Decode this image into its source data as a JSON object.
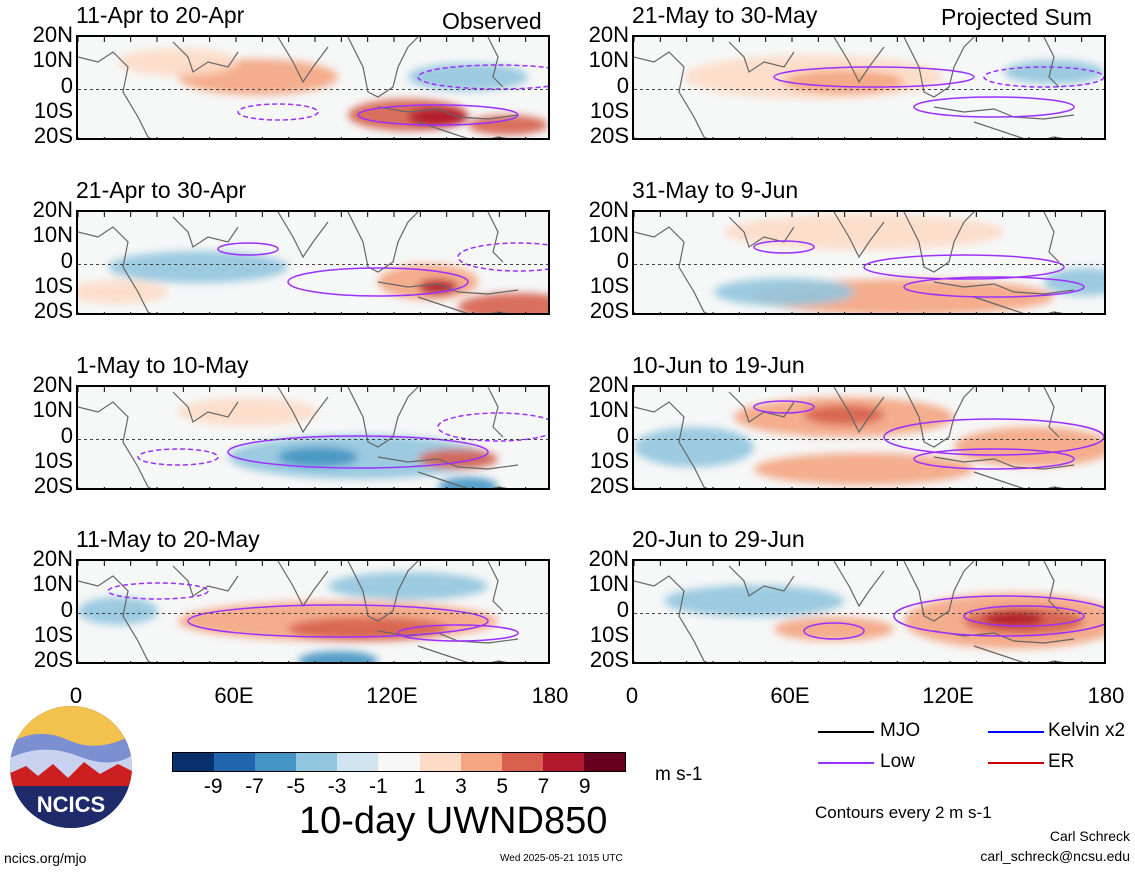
{
  "figure": {
    "title": "10-day UWND850",
    "left_header_right": "Observed",
    "right_header_right": "Projected Sum",
    "units": "m s-1",
    "contour_note": "Contours every 2 m s-1",
    "author": "Carl Schreck",
    "email": "carl_schreck@ncsu.edu",
    "url": "ncics.org/mjo",
    "timestamp": "Wed 2025-05-21 1015 UTC",
    "logo_text": "NCICS"
  },
  "chart_data": {
    "type": "heatmap",
    "y_ticks": [
      "20N",
      "10N",
      "0",
      "10S",
      "20S"
    ],
    "x_ticks": [
      "0",
      "60E",
      "120E",
      "180"
    ],
    "xlim": [
      0,
      180
    ],
    "ylim": [
      -20,
      20
    ],
    "panels": [
      {
        "title": "11-Apr to 20-Apr",
        "column": "Observed"
      },
      {
        "title": "21-Apr to 30-Apr",
        "column": "Observed"
      },
      {
        "title": "1-May to 10-May",
        "column": "Observed"
      },
      {
        "title": "11-May to 20-May",
        "column": "Observed"
      },
      {
        "title": "21-May to 30-May",
        "column": "Projected Sum"
      },
      {
        "title": "31-May to 9-Jun",
        "column": "Projected Sum"
      },
      {
        "title": "10-Jun to 19-Jun",
        "column": "Projected Sum"
      },
      {
        "title": "20-Jun to 29-Jun",
        "column": "Projected Sum"
      }
    ],
    "colorbar": {
      "ticks": [
        "-9",
        "-7",
        "-5",
        "-3",
        "-1",
        "1",
        "3",
        "5",
        "7",
        "9"
      ],
      "colors": [
        "#08306b",
        "#2166ac",
        "#4393c3",
        "#92c5de",
        "#d1e5f0",
        "#f7f7f7",
        "#fddbc7",
        "#f4a582",
        "#d6604d",
        "#b2182b",
        "#67001f"
      ]
    },
    "legend": [
      {
        "label": "MJO",
        "color": "#000000"
      },
      {
        "label": "Kelvin x2",
        "color": "#0000ee"
      },
      {
        "label": "Low",
        "color": "#9b30ff"
      },
      {
        "label": "ER",
        "color": "#cc0000"
      }
    ]
  }
}
